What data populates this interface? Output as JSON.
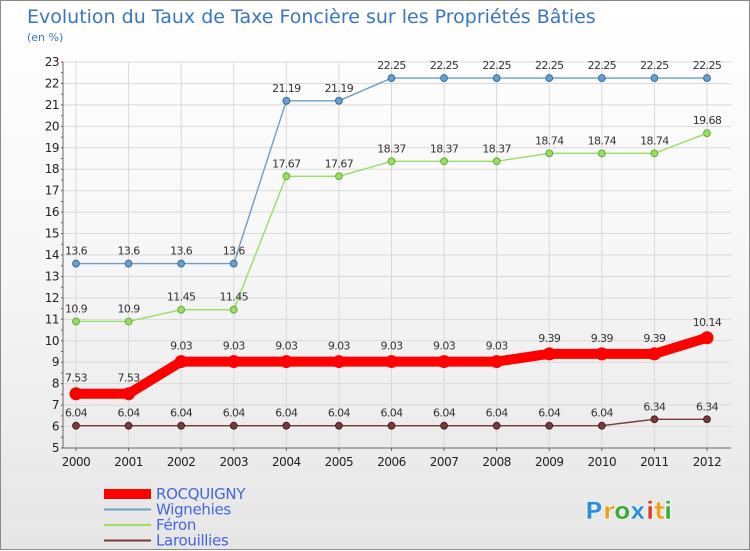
{
  "chart_data": {
    "type": "line",
    "title": "Evolution du Taux de Taxe Foncière sur les Propriétés Bâties",
    "subtitle": "(en %)",
    "x": [
      "2000",
      "2001",
      "2002",
      "2003",
      "2004",
      "2005",
      "2006",
      "2007",
      "2008",
      "2009",
      "2010",
      "2011",
      "2012"
    ],
    "ylim": [
      5,
      23
    ],
    "yticks": [
      "5",
      "6",
      "7",
      "8",
      "9",
      "10",
      "11",
      "12",
      "13",
      "14",
      "15",
      "16",
      "17",
      "18",
      "19",
      "20",
      "21",
      "22",
      "23"
    ],
    "grid": true,
    "legend_position": "bottom-left",
    "series": [
      {
        "name": "ROCQUIGNY",
        "color": "#ff0000",
        "values": [
          7.53,
          7.53,
          9.03,
          9.03,
          9.03,
          9.03,
          9.03,
          9.03,
          9.03,
          9.39,
          9.39,
          9.39,
          10.14
        ],
        "labels": [
          "7.53",
          "7.53",
          "9.03",
          "9.03",
          "9.03",
          "9.03",
          "9.03",
          "9.03",
          "9.03",
          "9.39",
          "9.39",
          "9.39",
          "10.14"
        ]
      },
      {
        "name": "Wignehies",
        "color": "#6b9fc9",
        "values": [
          13.6,
          13.6,
          13.6,
          13.6,
          21.19,
          21.19,
          22.25,
          22.25,
          22.25,
          22.25,
          22.25,
          22.25,
          22.25
        ],
        "labels": [
          "13.6",
          "13.6",
          "13.6",
          "13.6",
          "21.19",
          "21.19",
          "22.25",
          "22.25",
          "22.25",
          "22.25",
          "22.25",
          "22.25",
          "22.25"
        ]
      },
      {
        "name": "Féron",
        "color": "#99dd66",
        "values": [
          10.9,
          10.9,
          11.45,
          11.45,
          17.67,
          17.67,
          18.37,
          18.37,
          18.37,
          18.74,
          18.74,
          18.74,
          19.68
        ],
        "labels": [
          "10.9",
          "10.9",
          "11.45",
          "11.45",
          "17.67",
          "17.67",
          "18.37",
          "18.37",
          "18.37",
          "18.74",
          "18.74",
          "18.74",
          "19.68"
        ]
      },
      {
        "name": "Larouillies",
        "color": "#7a3a3a",
        "values": [
          6.04,
          6.04,
          6.04,
          6.04,
          6.04,
          6.04,
          6.04,
          6.04,
          6.04,
          6.04,
          6.04,
          6.34,
          6.34
        ],
        "labels": [
          "6.04",
          "6.04",
          "6.04",
          "6.04",
          "6.04",
          "6.04",
          "6.04",
          "6.04",
          "6.04",
          "6.04",
          "6.04",
          "6.34",
          "6.34"
        ]
      }
    ]
  },
  "brand": {
    "letters": [
      "P",
      "r",
      "o",
      "x",
      "i",
      "t",
      "i"
    ],
    "colors": [
      "#2e8fd6",
      "#e8a21c",
      "#3aaa3a",
      "#2e8fd6",
      "#d93a2a",
      "#e8a21c",
      "#3aaa3a"
    ]
  }
}
